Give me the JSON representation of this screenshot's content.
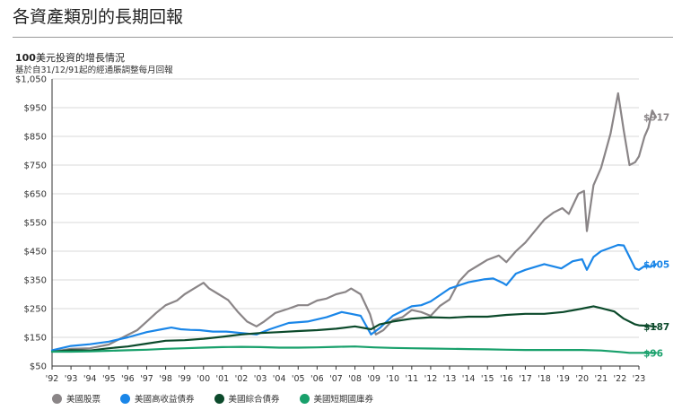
{
  "page": {
    "title": "各資產類別的長期回報"
  },
  "chart_data": {
    "type": "line",
    "title_bold": "100",
    "title_rest": "美元投資的增長情況",
    "subtitle": "基於自31/12/91起的經通脹調整每月回報",
    "ylim": [
      50,
      1050
    ],
    "y_ticks": [
      "$1,050",
      "$950",
      "$850",
      "$750",
      "$650",
      "$550",
      "$450",
      "$350",
      "$250",
      "$150",
      "$50"
    ],
    "y_tick_values": [
      1050,
      950,
      850,
      750,
      650,
      550,
      450,
      350,
      250,
      150,
      50
    ],
    "x_ticks": [
      "'92",
      "'93",
      "'94",
      "'95",
      "'96",
      "'97",
      "'98",
      "'99",
      "'00",
      "'01",
      "'02",
      "'03",
      "'04",
      "'05",
      "'06",
      "'07",
      "'08",
      "'09",
      "'10",
      "'11",
      "'12",
      "'13",
      "'14",
      "'15",
      "'16",
      "'17",
      "'18",
      "'19",
      "'20",
      "'21",
      "'22",
      "'23"
    ],
    "x_tick_years": [
      1992,
      1993,
      1994,
      1995,
      1996,
      1997,
      1998,
      1999,
      2000,
      2001,
      2002,
      2003,
      2004,
      2005,
      2006,
      2007,
      2008,
      2009,
      2010,
      2011,
      2012,
      2013,
      2014,
      2015,
      2016,
      2017,
      2018,
      2019,
      2020,
      2021,
      2022,
      2023
    ],
    "xlim": [
      1992.0,
      2023.0
    ],
    "grid": true,
    "legend_position": "bottom-left",
    "series": [
      {
        "name": "美國股票",
        "color": "#8a8587",
        "end_label": "$917",
        "x": [
          1992.0,
          1993.0,
          1994.0,
          1995.0,
          1995.8,
          1996.5,
          1997.0,
          1997.5,
          1998.0,
          1998.6,
          1999.0,
          1999.5,
          2000.0,
          2000.3,
          2000.8,
          2001.3,
          2001.8,
          2002.3,
          2002.8,
          2003.2,
          2003.8,
          2004.5,
          2005.0,
          2005.5,
          2006.0,
          2006.5,
          2007.0,
          2007.5,
          2007.8,
          2008.3,
          2008.8,
          2009.1,
          2009.5,
          2010.0,
          2010.5,
          2011.0,
          2011.5,
          2012.0,
          2012.5,
          2013.0,
          2013.5,
          2014.0,
          2014.5,
          2015.0,
          2015.6,
          2016.0,
          2016.5,
          2017.0,
          2017.5,
          2018.0,
          2018.5,
          2018.95,
          2019.3,
          2019.8,
          2020.1,
          2020.25,
          2020.6,
          2021.0,
          2021.5,
          2021.9,
          2022.2,
          2022.5,
          2022.8,
          2023.0,
          2023.3,
          2023.5,
          2023.7,
          2023.9
        ],
        "y": [
          100,
          110,
          112,
          125,
          152,
          175,
          205,
          235,
          262,
          278,
          300,
          320,
          340,
          320,
          300,
          280,
          240,
          205,
          188,
          205,
          235,
          250,
          262,
          262,
          278,
          285,
          300,
          308,
          320,
          300,
          230,
          160,
          175,
          210,
          220,
          245,
          238,
          225,
          260,
          282,
          345,
          380,
          400,
          420,
          435,
          412,
          450,
          480,
          520,
          560,
          585,
          600,
          580,
          650,
          660,
          520,
          680,
          740,
          860,
          1000,
          870,
          750,
          760,
          780,
          850,
          880,
          940,
          917
        ]
      },
      {
        "name": "美國高收益債券",
        "color": "#1a86e8",
        "end_label": "$405",
        "x": [
          1992.0,
          1993.0,
          1994.0,
          1995.0,
          1996.0,
          1997.0,
          1997.8,
          1998.3,
          1998.8,
          1999.3,
          1999.8,
          2000.5,
          2001.2,
          2002.0,
          2002.8,
          2003.5,
          2004.5,
          2005.5,
          2006.5,
          2007.3,
          2007.8,
          2008.3,
          2008.85,
          2009.3,
          2010.0,
          2011.0,
          2011.5,
          2012.0,
          2013.0,
          2014.0,
          2014.8,
          2015.3,
          2015.8,
          2016.0,
          2016.5,
          2017.0,
          2018.0,
          2018.9,
          2019.5,
          2020.0,
          2020.25,
          2020.6,
          2021.0,
          2021.9,
          2022.2,
          2022.5,
          2022.8,
          2023.0,
          2023.3,
          2023.6,
          2023.9
        ],
        "y": [
          105,
          120,
          126,
          135,
          150,
          168,
          178,
          184,
          178,
          176,
          175,
          170,
          170,
          165,
          160,
          178,
          200,
          205,
          220,
          238,
          232,
          225,
          160,
          182,
          225,
          258,
          262,
          275,
          320,
          342,
          352,
          355,
          340,
          332,
          372,
          385,
          405,
          390,
          415,
          422,
          385,
          430,
          450,
          472,
          470,
          430,
          390,
          385,
          398,
          395,
          405
        ]
      },
      {
        "name": "美國綜合債券",
        "color": "#0c4a2b",
        "end_label": "$187",
        "x": [
          1992.0,
          1993.0,
          1994.0,
          1995.0,
          1996.0,
          1997.0,
          1998.0,
          1999.0,
          2000.0,
          2001.0,
          2002.0,
          2003.0,
          2004.0,
          2005.0,
          2006.0,
          2007.0,
          2008.0,
          2008.85,
          2009.3,
          2010.0,
          2011.0,
          2012.0,
          2013.0,
          2014.0,
          2015.0,
          2016.0,
          2017.0,
          2018.0,
          2019.0,
          2020.0,
          2020.6,
          2021.0,
          2021.7,
          2022.2,
          2022.8,
          2023.0,
          2023.5,
          2023.9
        ],
        "y": [
          100,
          105,
          104,
          112,
          118,
          128,
          138,
          140,
          145,
          152,
          160,
          165,
          168,
          172,
          175,
          180,
          188,
          178,
          195,
          205,
          215,
          220,
          218,
          222,
          222,
          228,
          232,
          232,
          238,
          250,
          258,
          252,
          240,
          215,
          195,
          192,
          190,
          187
        ]
      },
      {
        "name": "美國短期國庫券",
        "color": "#18a06b",
        "end_label": "$96",
        "x": [
          1992.0,
          1993.0,
          1994.0,
          1995.0,
          1996.0,
          1997.0,
          1998.0,
          1999.0,
          2000.0,
          2001.0,
          2002.0,
          2003.0,
          2004.0,
          2005.0,
          2006.0,
          2007.0,
          2008.0,
          2009.0,
          2010.0,
          2011.0,
          2012.0,
          2013.0,
          2014.0,
          2015.0,
          2016.0,
          2017.0,
          2018.0,
          2019.0,
          2020.0,
          2021.0,
          2022.0,
          2022.5,
          2023.0,
          2023.9
        ],
        "y": [
          100,
          100,
          101,
          103,
          105,
          107,
          110,
          112,
          114,
          116,
          117,
          116,
          114,
          114,
          115,
          117,
          118,
          115,
          113,
          112,
          111,
          110,
          109,
          108,
          107,
          106,
          106,
          106,
          106,
          104,
          99,
          96,
          96,
          96
        ]
      }
    ]
  }
}
